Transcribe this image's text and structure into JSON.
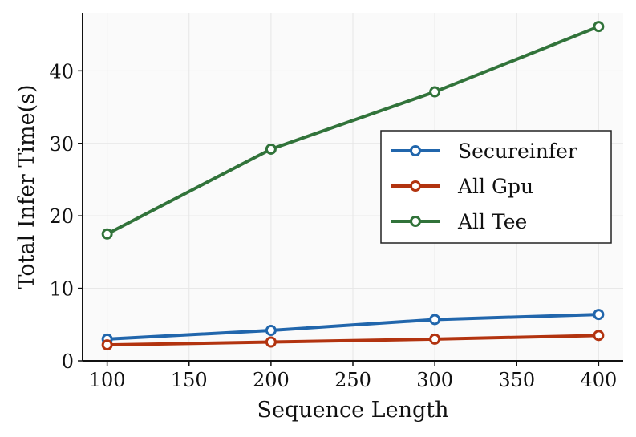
{
  "chart_data": {
    "type": "line",
    "x": [
      100,
      200,
      300,
      400
    ],
    "series": [
      {
        "name": "Secureinfer",
        "values": [
          3.0,
          4.2,
          5.7,
          6.4
        ],
        "color": "#2166ac"
      },
      {
        "name": "All Gpu",
        "values": [
          2.2,
          2.6,
          3.0,
          3.5
        ],
        "color": "#b2330f"
      },
      {
        "name": "All Tee",
        "values": [
          17.5,
          29.2,
          37.1,
          46.1
        ],
        "color": "#31733a"
      }
    ],
    "xlabel": "Sequence Length",
    "ylabel": "Total Infer Time(s)",
    "xlim": [
      85,
      415
    ],
    "ylim": [
      0,
      48
    ],
    "xticks": [
      100,
      150,
      200,
      250,
      300,
      350,
      400
    ],
    "yticks": [
      0,
      10,
      20,
      30,
      40
    ],
    "grid": true,
    "legend_position": "center-right",
    "background": "#fafafa"
  }
}
